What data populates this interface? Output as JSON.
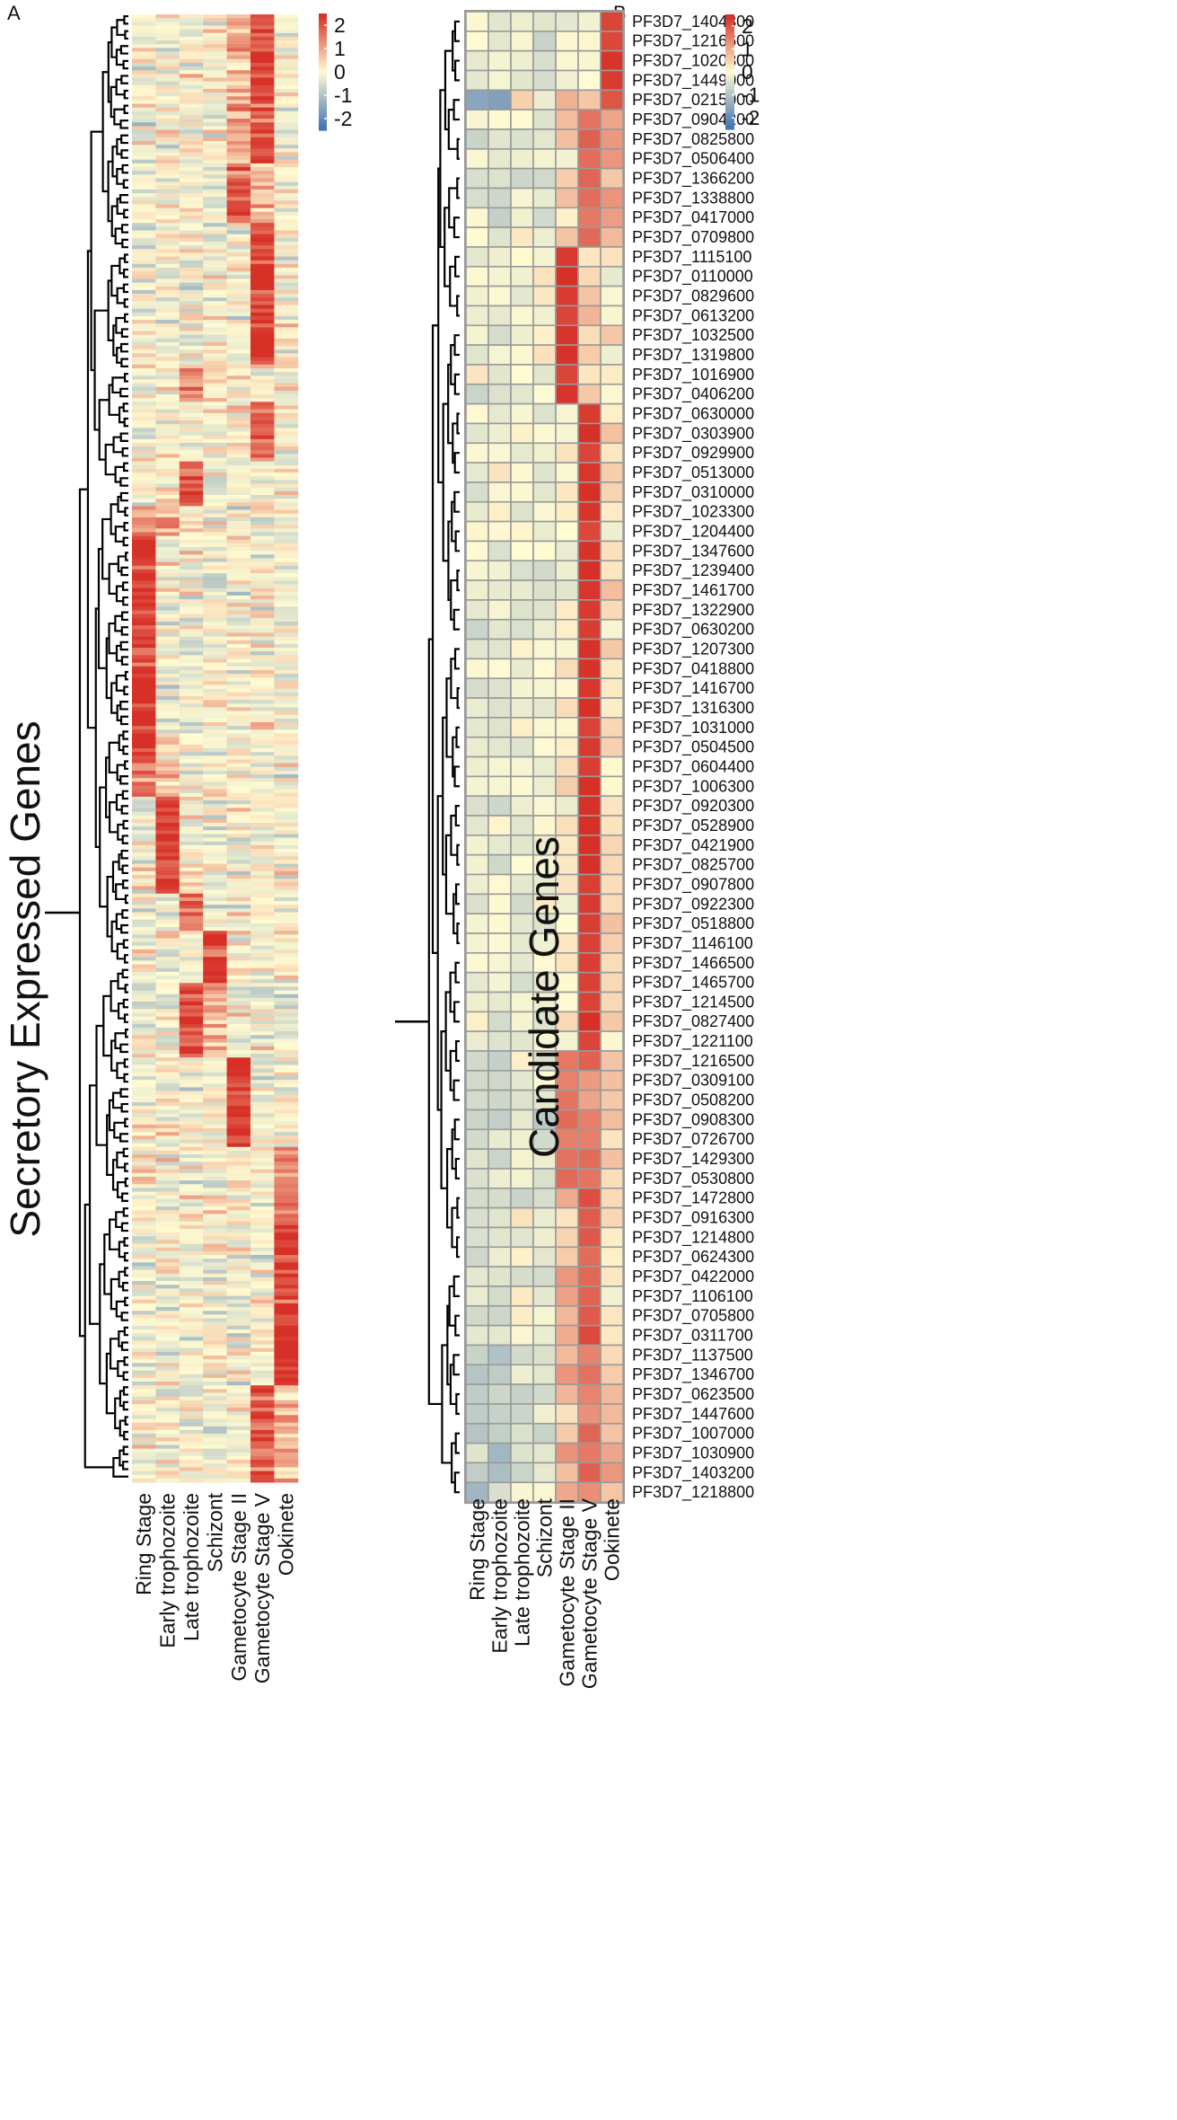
{
  "colors": {
    "high": "#d73027",
    "mid": "#fffbd2",
    "low": "#4575b4",
    "grid": "#9a9a9a",
    "dendrogram": "#000000"
  },
  "chart_data": [
    {
      "type": "heatmap",
      "panel": "A",
      "ylabel": "Secretory Expressed Genes",
      "columns": [
        "Ring Stage",
        "Early trophozoite",
        "Late trophozoite",
        "Schizont",
        "Gametocyte Stage II",
        "Gametocyte Stage V",
        "Ookinete"
      ],
      "color_scale": {
        "min": -2.5,
        "max": 2.5,
        "ticks": [
          2,
          1,
          0,
          -1,
          -2
        ]
      },
      "row_count": "many (not labeled)",
      "clusters": [
        {
          "rows": 40,
          "peak": "Gametocyte Stage V",
          "level": 2.0,
          "secondary": "Gametocyte Stage II"
        },
        {
          "rows": 16,
          "peak": "Gametocyte Stage II",
          "level": 1.8,
          "secondary": "Gametocyte Stage V"
        },
        {
          "rows": 38,
          "peak": "Gametocyte Stage V",
          "level": 2.2
        },
        {
          "rows": 10,
          "peak": "Late trophozoite",
          "level": 1.2
        },
        {
          "rows": 16,
          "peak": "Gametocyte Stage V",
          "level": 1.8
        },
        {
          "rows": 12,
          "peak": "Late trophozoite",
          "level": 2.0
        },
        {
          "rows": 8,
          "peak": "Ring Stage",
          "level": 1.4,
          "secondary": "Early trophozoite"
        },
        {
          "rows": 60,
          "peak": "Ring Stage",
          "level": 2.3
        },
        {
          "rows": 10,
          "peak": "Ring Stage",
          "level": 1.4,
          "secondary": "Early trophozoite"
        },
        {
          "rows": 26,
          "peak": "Early trophozoite",
          "level": 2.3
        },
        {
          "rows": 10,
          "peak": "Late trophozoite",
          "level": 1.8
        },
        {
          "rows": 14,
          "peak": "Schizont",
          "level": 2.2
        },
        {
          "rows": 20,
          "peak": "Late trophozoite",
          "level": 2.0,
          "secondary": "Schizont"
        },
        {
          "rows": 24,
          "peak": "Gametocyte Stage II",
          "level": 2.2
        },
        {
          "rows": 20,
          "peak": "Ookinete",
          "level": 1.6
        },
        {
          "rows": 22,
          "peak": "Ookinete",
          "level": 2.1
        },
        {
          "rows": 22,
          "peak": "Ookinete",
          "level": 2.3
        },
        {
          "rows": 26,
          "peak": "Gametocyte Stage V",
          "level": 1.8,
          "secondary": "Ookinete"
        }
      ]
    },
    {
      "type": "heatmap",
      "panel": "B",
      "ylabel": "Candidate Genes",
      "columns": [
        "Ring Stage",
        "Early trophozoite",
        "Late trophozoite",
        "Schizont",
        "Gametocyte Stage II",
        "Gametocyte Stage V",
        "Ookinete"
      ],
      "color_scale": {
        "min": -2.5,
        "max": 2.5,
        "ticks": [
          2,
          1,
          0,
          -1,
          -2
        ]
      },
      "row_groups": [
        {
          "pattern": [
            -0.3,
            -0.3,
            -0.3,
            -0.3,
            0,
            0,
            2.3
          ],
          "genes": [
            "PF3D7_1404300",
            "PF3D7_1216600",
            "PF3D7_1020800",
            "PF3D7_1449000"
          ]
        },
        {
          "pattern": [
            -1.5,
            -1.2,
            0.6,
            -0.2,
            0.6,
            0.8,
            2.0
          ],
          "genes": [
            "PF3D7_0215000"
          ]
        },
        {
          "pattern": [
            -0.3,
            -0.3,
            -0.3,
            -0.3,
            0.4,
            1.7,
            1.1
          ],
          "genes": [
            "PF3D7_0904200",
            "PF3D7_0825800",
            "PF3D7_0506400",
            "PF3D7_1366200",
            "PF3D7_1338800",
            "PF3D7_0417000",
            "PF3D7_0709800"
          ]
        },
        {
          "pattern": [
            -0.3,
            -0.3,
            -0.1,
            -0.1,
            2.3,
            0.5,
            0.1
          ],
          "genes": [
            "PF3D7_1115100",
            "PF3D7_0110000",
            "PF3D7_0829600",
            "PF3D7_0613200",
            "PF3D7_1032500",
            "PF3D7_1319800",
            "PF3D7_1016900",
            "PF3D7_0406200"
          ]
        },
        {
          "pattern": [
            -0.2,
            -0.2,
            -0.2,
            -0.2,
            0.1,
            2.3,
            0.3
          ],
          "genes": [
            "PF3D7_0630000",
            "PF3D7_0303900",
            "PF3D7_0929900",
            "PF3D7_0513000",
            "PF3D7_0310000",
            "PF3D7_1023300",
            "PF3D7_1204400",
            "PF3D7_1347600",
            "PF3D7_1239400",
            "PF3D7_1461700",
            "PF3D7_1322900",
            "PF3D7_0630200",
            "PF3D7_1207300",
            "PF3D7_0418800",
            "PF3D7_1416700",
            "PF3D7_1316300",
            "PF3D7_1031000",
            "PF3D7_0504500",
            "PF3D7_0604400",
            "PF3D7_1006300",
            "PF3D7_0920300",
            "PF3D7_0528900",
            "PF3D7_0421900",
            "PF3D7_0825700",
            "PF3D7_0907800",
            "PF3D7_0922300",
            "PF3D7_0518800",
            "PF3D7_1146100",
            "PF3D7_1466500",
            "PF3D7_1465700",
            "PF3D7_1214500",
            "PF3D7_0827400",
            "PF3D7_1221100"
          ]
        },
        {
          "pattern": [
            -0.5,
            -0.6,
            -0.3,
            -0.3,
            1.6,
            1.4,
            0.6
          ],
          "genes": [
            "PF3D7_1216500",
            "PF3D7_0309100",
            "PF3D7_0508200",
            "PF3D7_0908300",
            "PF3D7_0726700",
            "PF3D7_1429300",
            "PF3D7_0530800"
          ]
        },
        {
          "pattern": [
            -0.4,
            -0.4,
            -0.2,
            -0.2,
            0.7,
            1.9,
            0.3
          ],
          "genes": [
            "PF3D7_1472800",
            "PF3D7_0916300",
            "PF3D7_1214800",
            "PF3D7_0624300",
            "PF3D7_0422000",
            "PF3D7_1106100",
            "PF3D7_0705800",
            "PF3D7_0311700"
          ]
        },
        {
          "pattern": [
            -0.8,
            -0.8,
            -0.5,
            -0.4,
            0.8,
            1.5,
            0.8
          ],
          "genes": [
            "PF3D7_1137500",
            "PF3D7_1346700",
            "PF3D7_0623500",
            "PF3D7_1447600",
            "PF3D7_1007000",
            "PF3D7_1030900",
            "PF3D7_1403200",
            "PF3D7_1218800"
          ]
        }
      ]
    }
  ]
}
